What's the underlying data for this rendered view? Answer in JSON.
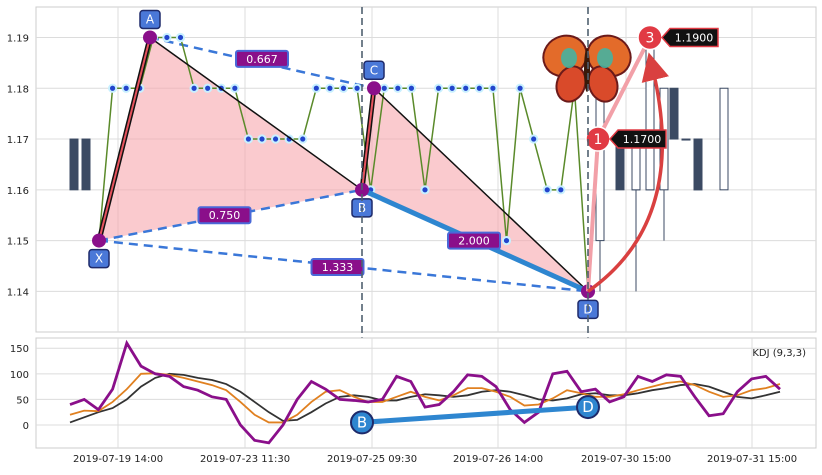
{
  "chart_data": {
    "type": "candlestick",
    "price_panel": {
      "yticks": [
        "1.14",
        "1.15",
        "1.16",
        "1.17",
        "1.18",
        "1.19"
      ],
      "ylim": [
        1.132,
        1.196
      ],
      "grid": true,
      "candles": [
        {
          "o": 1.17,
          "h": 1.17,
          "l": 1.16,
          "c": 1.16
        },
        {
          "o": 1.17,
          "h": 1.17,
          "l": 1.16,
          "c": 1.16
        },
        {
          "o": 1.17,
          "h": 1.17,
          "l": 1.16,
          "c": 1.16
        },
        {
          "o": 1.17,
          "h": 1.17,
          "l": 1.16,
          "c": 1.16
        },
        {
          "o": 1.17,
          "h": 1.17,
          "l": 1.16,
          "c": 1.16
        },
        {
          "o": 1.16,
          "h": 1.18,
          "l": 1.15,
          "c": 1.18
        },
        {
          "o": 1.15,
          "h": 1.18,
          "l": 1.14,
          "c": 1.18
        },
        {
          "o": 1.17,
          "h": 1.17,
          "l": 1.17,
          "c": 1.17
        },
        {
          "o": 1.16,
          "h": 1.17,
          "l": 1.14,
          "c": 1.17
        },
        {
          "o": 1.17,
          "h": 1.17,
          "l": 1.16,
          "c": 1.16
        },
        {
          "o": 1.16,
          "h": 1.19,
          "l": 1.16,
          "c": 1.19
        },
        {
          "o": 1.19,
          "h": 1.19,
          "l": 1.19,
          "c": 1.19
        },
        {
          "o": 1.18,
          "h": 1.18,
          "l": 1.17,
          "c": 1.17
        },
        {
          "o": 1.17,
          "h": 1.17,
          "l": 1.17,
          "c": 1.17
        },
        {
          "o": 1.17,
          "h": 1.17,
          "l": 1.16,
          "c": 1.16
        },
        {
          "o": 1.16,
          "h": 1.18,
          "l": 1.16,
          "c": 1.18
        }
      ],
      "close_line": [
        1.15,
        1.18,
        1.18,
        1.18,
        1.19,
        1.19,
        1.19,
        1.18,
        1.18,
        1.18,
        1.18,
        1.17,
        1.17,
        1.17,
        1.17,
        1.17,
        1.18,
        1.18,
        1.18,
        1.18,
        1.16,
        1.18,
        1.18,
        1.18,
        1.16,
        1.18,
        1.18,
        1.18,
        1.18,
        1.18,
        1.15,
        1.18,
        1.17,
        1.16,
        1.16,
        1.18,
        1.14
      ],
      "pattern": {
        "points": [
          {
            "label": "X",
            "value": 1.15
          },
          {
            "label": "A",
            "value": 1.19
          },
          {
            "label": "B",
            "value": 1.16
          },
          {
            "label": "C",
            "value": 1.18
          },
          {
            "label": "D",
            "value": 1.14
          }
        ],
        "ratios": [
          "0.667",
          "0.750",
          "2.000",
          "1.333"
        ]
      },
      "targets": [
        {
          "number": "1",
          "price": "1.1700"
        },
        {
          "number": "3",
          "price": "1.1900"
        }
      ]
    },
    "kdj_panel": {
      "label": "KDJ (9,3,3)",
      "yticks": [
        "0",
        "50",
        "100",
        "150"
      ],
      "ylim": [
        -45,
        170
      ],
      "K": [
        20,
        28,
        27,
        45,
        70,
        100,
        101,
        98,
        92,
        85,
        78,
        68,
        45,
        20,
        5,
        5,
        20,
        45,
        65,
        68,
        55,
        45,
        45,
        55,
        65,
        55,
        48,
        58,
        72,
        72,
        65,
        55,
        38,
        40,
        52,
        68,
        62,
        55,
        55,
        60,
        68,
        75,
        82,
        85,
        78,
        65,
        55,
        58,
        68,
        72,
        80
      ],
      "D": [
        5,
        15,
        25,
        33,
        50,
        75,
        92,
        100,
        98,
        92,
        88,
        80,
        65,
        45,
        25,
        8,
        10,
        25,
        42,
        55,
        58,
        55,
        48,
        48,
        55,
        60,
        58,
        55,
        58,
        65,
        68,
        65,
        58,
        50,
        48,
        52,
        60,
        62,
        58,
        58,
        62,
        68,
        72,
        78,
        80,
        75,
        65,
        55,
        52,
        58,
        65
      ],
      "J": [
        40,
        50,
        30,
        70,
        160,
        115,
        100,
        95,
        75,
        68,
        55,
        50,
        0,
        -30,
        -35,
        0,
        50,
        85,
        70,
        50,
        48,
        45,
        50,
        95,
        85,
        35,
        40,
        65,
        98,
        95,
        75,
        30,
        5,
        25,
        100,
        105,
        65,
        70,
        45,
        55,
        95,
        85,
        98,
        95,
        55,
        18,
        22,
        65,
        90,
        95,
        70
      ],
      "markers": [
        {
          "label": "B",
          "value": 5
        },
        {
          "label": "D",
          "value": 35
        }
      ]
    },
    "xticks": [
      "2019-07-19 14:00",
      "2019-07-23 11:30",
      "2019-07-25 09:30",
      "2019-07-26 14:00",
      "2019-07-30 15:00",
      "2019-07-31 15:00"
    ]
  }
}
